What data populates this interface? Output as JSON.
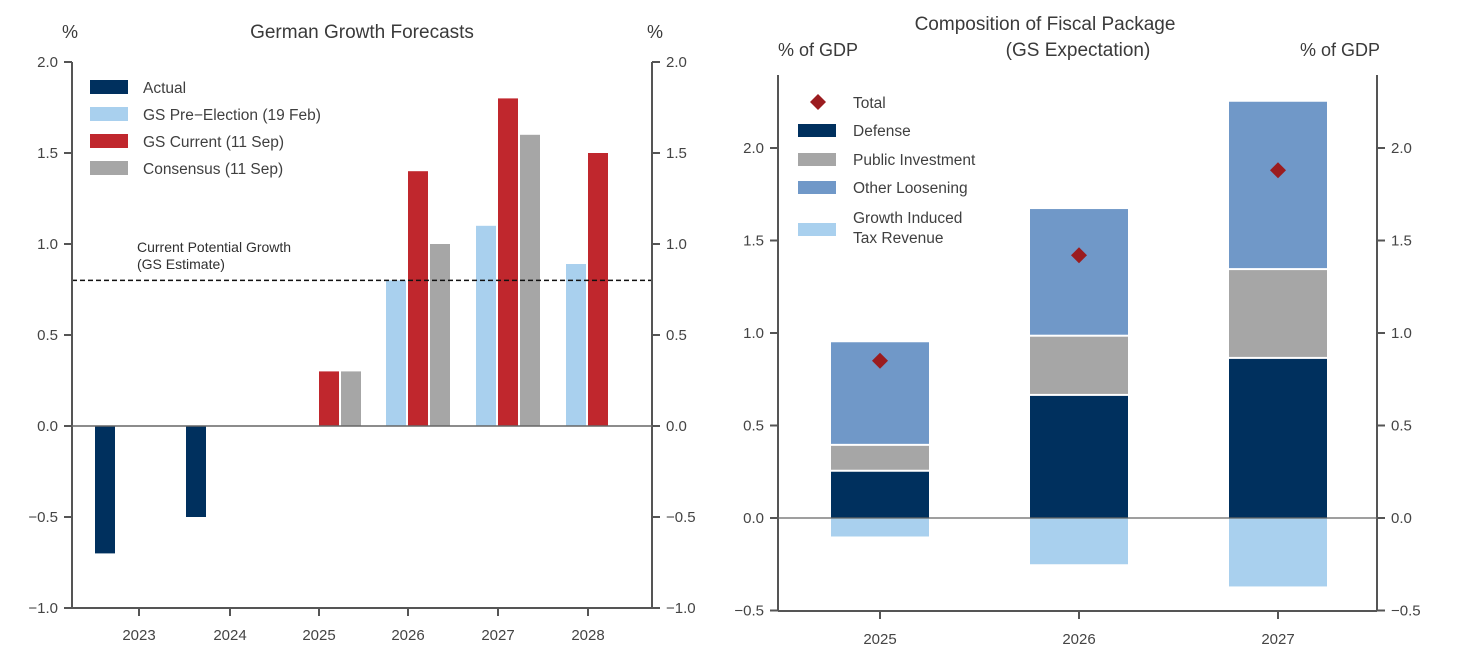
{
  "colors": {
    "actual": "#00305e",
    "pre_election": "#a9d0ee",
    "current": "#c0272d",
    "consensus": "#a6a6a6",
    "defense": "#00305e",
    "public_investment": "#a6a6a6",
    "other_loosening": "#7098c8",
    "tax_revenue": "#a9d0ee",
    "total_marker": "#9b1c1f"
  },
  "chart_data": [
    {
      "type": "bar",
      "title": "German Growth Forecasts",
      "ylabel_left": "%",
      "ylabel_right": "%",
      "xlabel": "",
      "ylim": [
        -1.0,
        2.0
      ],
      "yticks": [
        "2.0",
        "1.5",
        "1.0",
        "0.5",
        "0.0",
        "-0.5",
        "-1.0"
      ],
      "ytick_values": [
        2.0,
        1.5,
        1.0,
        0.5,
        0.0,
        -0.5,
        -1.0
      ],
      "categories": [
        "2023",
        "2024",
        "2025",
        "2026",
        "2027",
        "2028"
      ],
      "series": [
        {
          "name": "Actual",
          "key": "actual",
          "values": [
            -0.7,
            -0.5,
            null,
            null,
            null,
            null
          ]
        },
        {
          "name": "GS Pre-Election (19 Feb)",
          "key": "pre_election",
          "values": [
            null,
            null,
            null,
            0.8,
            1.1,
            0.89
          ]
        },
        {
          "name": "GS Current (11 Sep)",
          "key": "current",
          "values": [
            null,
            null,
            0.3,
            1.4,
            1.8,
            1.5
          ]
        },
        {
          "name": "Consensus (11 Sep)",
          "key": "consensus",
          "values": [
            null,
            null,
            0.3,
            1.0,
            1.6,
            null
          ]
        }
      ],
      "reference_line": {
        "value": 0.8,
        "style": "dashed",
        "label_line1": "Current Potential Growth",
        "label_line2": "(GS Estimate)"
      },
      "legend_position": "top-left",
      "grid": false
    },
    {
      "type": "bar",
      "stacked": true,
      "title_line1": "Composition of Fiscal Package",
      "title_line2": "(GS Expectation)",
      "ylabel_left": "% of GDP",
      "ylabel_right": "% of GDP",
      "xlabel": "",
      "ylim": [
        -0.5,
        2.3
      ],
      "yticks": [
        "2.0",
        "1.5",
        "1.0",
        "0.5",
        "0.0",
        "-0.5"
      ],
      "ytick_values": [
        2.0,
        1.5,
        1.0,
        0.5,
        0.0,
        -0.5
      ],
      "categories": [
        "2025",
        "2026",
        "2027"
      ],
      "series": [
        {
          "name": "Defense",
          "key": "defense",
          "values": [
            0.25,
            0.66,
            0.86
          ]
        },
        {
          "name": "Public Investment",
          "key": "public_investment",
          "values": [
            0.14,
            0.32,
            0.48
          ]
        },
        {
          "name": "Other Loosening",
          "key": "other_loosening",
          "values": [
            0.56,
            0.69,
            0.91
          ]
        },
        {
          "name": "Growth Induced Tax Revenue",
          "key": "tax_revenue",
          "values": [
            -0.1,
            -0.25,
            -0.37
          ]
        }
      ],
      "total": {
        "name": "Total",
        "key": "total_marker",
        "marker": "diamond",
        "values": [
          0.85,
          1.42,
          1.88
        ]
      },
      "legend": [
        {
          "label": "Total",
          "key": "total_marker",
          "marker": "diamond"
        },
        {
          "label": "Defense",
          "key": "defense"
        },
        {
          "label": "Public Investment",
          "key": "public_investment"
        },
        {
          "label": "Other Loosening",
          "key": "other_loosening"
        },
        {
          "label_line1": "Growth Induced",
          "label_line2": "Tax Revenue",
          "key": "tax_revenue"
        }
      ],
      "legend_position": "top-left",
      "grid": false
    }
  ]
}
